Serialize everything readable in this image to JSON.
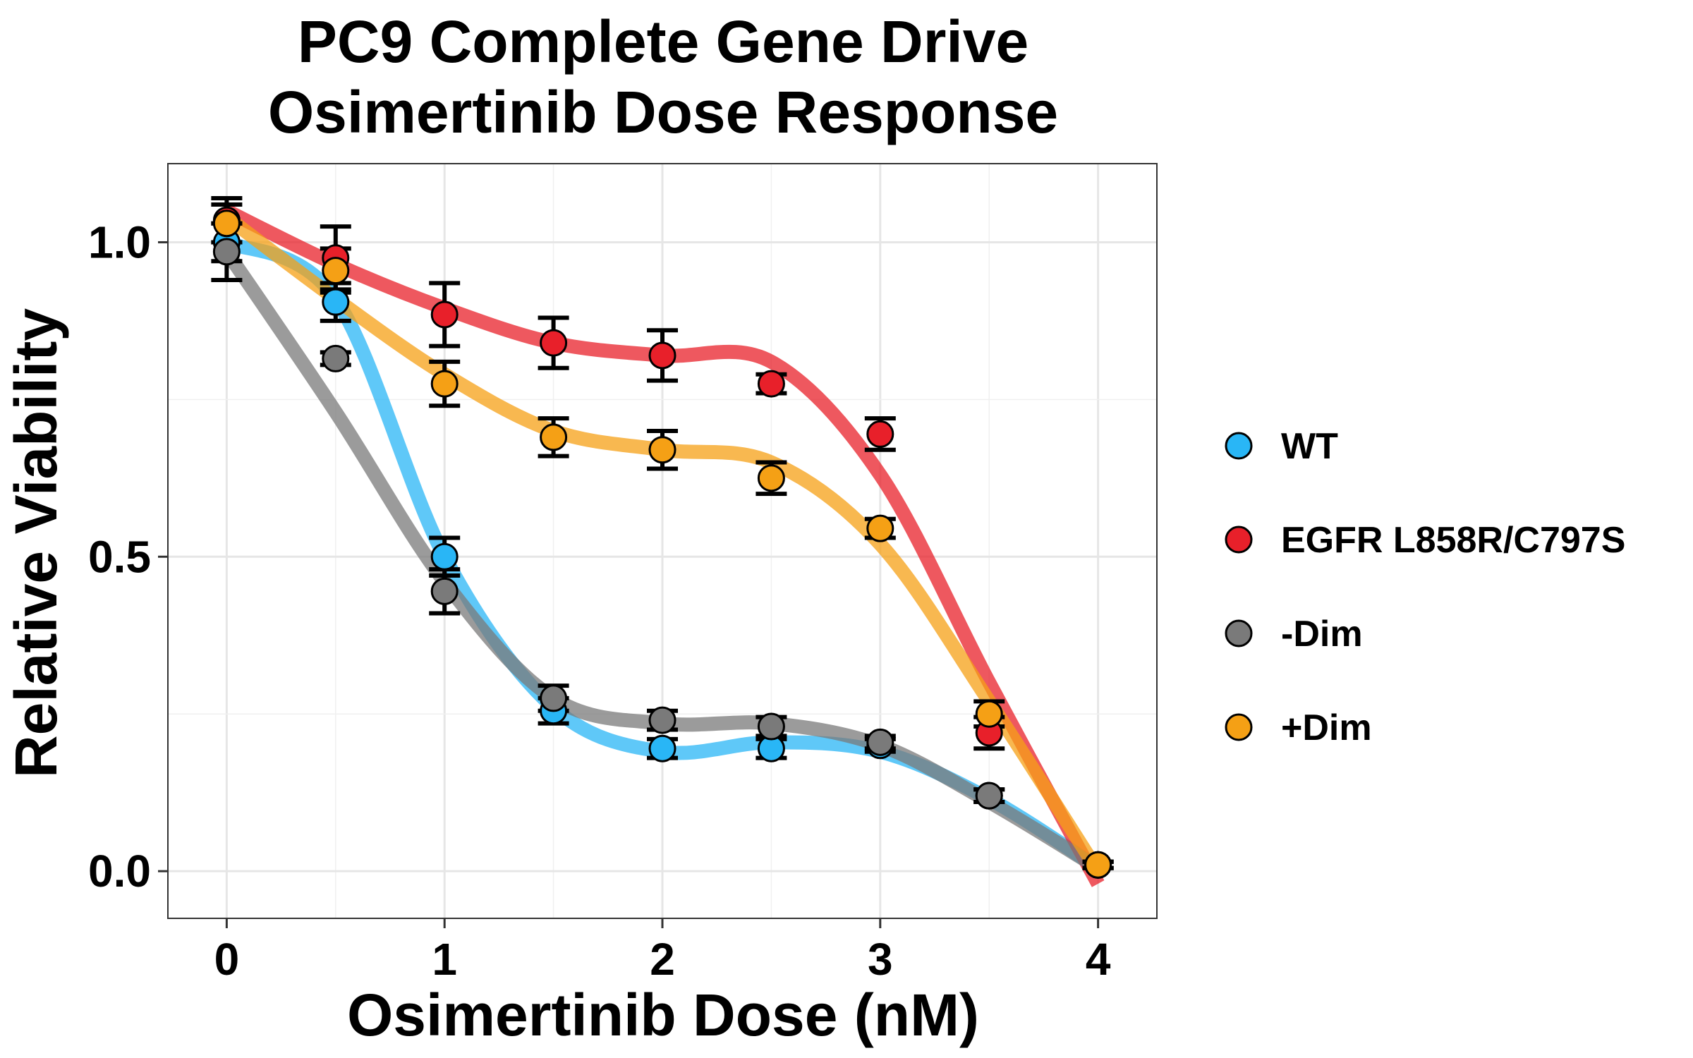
{
  "chart_data": {
    "type": "scatter",
    "title_lines": [
      "PC9 Complete Gene Drive",
      "Osimertinib Dose Response"
    ],
    "xlabel": "Osimertinib Dose (nM)",
    "ylabel": "Relative Viability",
    "xlim": [
      -0.27,
      4.27
    ],
    "ylim": [
      -0.075,
      1.125
    ],
    "xticks": [
      0,
      1,
      2,
      3,
      4
    ],
    "xtick_labels": [
      "0",
      "1",
      "2",
      "3",
      "4"
    ],
    "yticks": [
      0.0,
      0.5,
      1.0
    ],
    "ytick_labels": [
      "0.0",
      "0.5",
      "1.0"
    ],
    "grid": true,
    "legend_position": "right",
    "x": [
      0,
      0.5,
      1,
      1.5,
      2,
      2.5,
      3,
      3.5,
      4
    ],
    "series": [
      {
        "name": "WT",
        "color": "#29B6F6",
        "values": [
          1.0,
          0.905,
          0.5,
          0.255,
          0.195,
          0.195,
          0.2,
          0.12,
          0.01
        ],
        "err": [
          0.03,
          0.03,
          0.03,
          0.02,
          0.015,
          0.015,
          0.01,
          0.01,
          0.005
        ],
        "curve": [
          1.0,
          0.91,
          0.5,
          0.26,
          0.19,
          0.205,
          0.19,
          0.115,
          0.005
        ]
      },
      {
        "name": "EGFR L858R/C797S",
        "color": "#E8202A",
        "values": [
          1.035,
          0.975,
          0.885,
          0.84,
          0.82,
          0.775,
          0.695,
          0.22,
          0.01
        ],
        "err": [
          0.035,
          0.05,
          0.05,
          0.04,
          0.04,
          0.015,
          0.025,
          0.025,
          0.005
        ],
        "curve": [
          1.05,
          0.965,
          0.895,
          0.84,
          0.82,
          0.81,
          0.63,
          0.3,
          -0.02
        ]
      },
      {
        "name": " -Dim",
        "color": "#7A7A7A",
        "values": [
          0.985,
          0.815,
          0.445,
          0.275,
          0.24,
          0.23,
          0.205,
          0.12,
          0.01
        ],
        "err": [
          0.045,
          0.01,
          0.035,
          0.02,
          0.015,
          0.015,
          0.01,
          0.01,
          0.005
        ],
        "curve": [
          0.985,
          0.73,
          0.46,
          0.275,
          0.235,
          0.235,
          0.2,
          0.11,
          0.005
        ]
      },
      {
        "name": "+Dim",
        "color": "#F5A015",
        "values": [
          1.03,
          0.955,
          0.775,
          0.69,
          0.67,
          0.625,
          0.545,
          0.25,
          0.01
        ],
        "err": [
          0.03,
          0.035,
          0.035,
          0.03,
          0.03,
          0.025,
          0.015,
          0.02,
          0.005
        ],
        "curve": [
          1.04,
          0.91,
          0.79,
          0.7,
          0.67,
          0.65,
          0.52,
          0.27,
          0.0
        ]
      }
    ]
  }
}
